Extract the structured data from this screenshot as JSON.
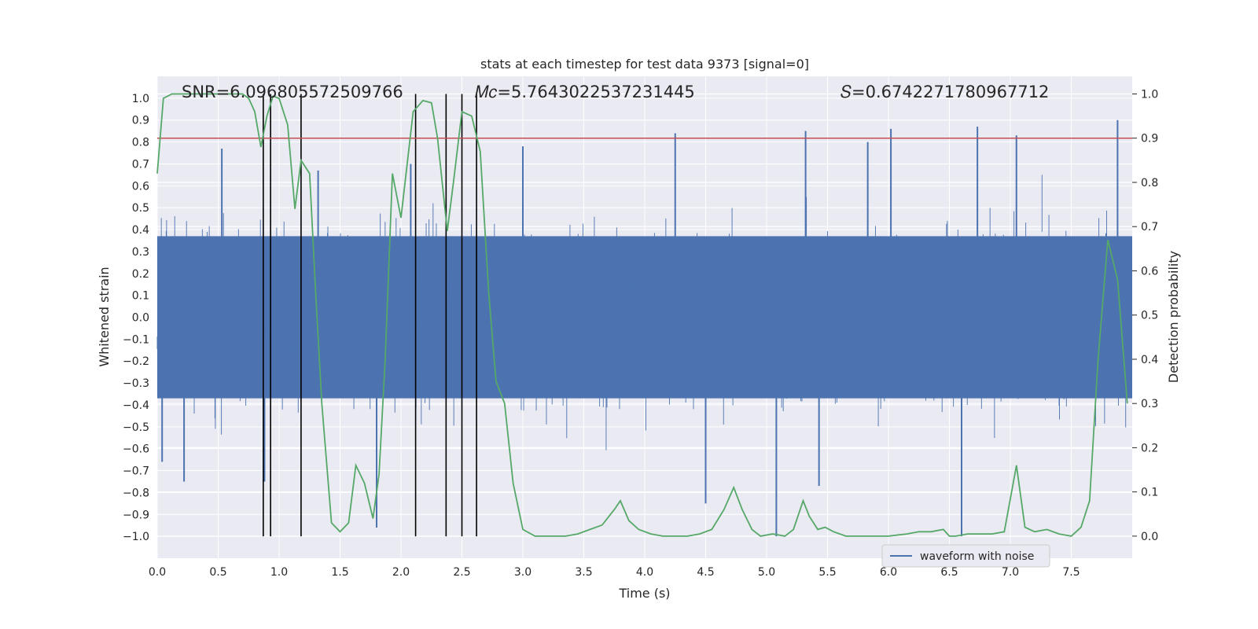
{
  "chart_data": {
    "type": "line",
    "title": "stats at each timestep for test data 9373 [signal=0]",
    "xlabel": "Time (s)",
    "ylabel": "Whitened strain",
    "y2label": "Detection probability",
    "xlim": [
      0.0,
      8.0
    ],
    "ylim": [
      -1.1,
      1.1
    ],
    "y2lim": [
      -0.05,
      1.04
    ],
    "xticks": [
      "0.0",
      "0.5",
      "1.0",
      "1.5",
      "2.0",
      "2.5",
      "3.0",
      "3.5",
      "4.0",
      "4.5",
      "5.0",
      "5.5",
      "6.0",
      "6.5",
      "7.0",
      "7.5"
    ],
    "yticks": [
      "−1.0",
      "−0.9",
      "−0.8",
      "−0.7",
      "−0.6",
      "−0.5",
      "−0.4",
      "−0.3",
      "−0.2",
      "−0.1",
      "0.0",
      "0.1",
      "0.2",
      "0.3",
      "0.4",
      "0.5",
      "0.6",
      "0.7",
      "0.8",
      "0.9",
      "1.0"
    ],
    "y2ticks": [
      "0.0",
      "0.1",
      "0.2",
      "0.3",
      "0.4",
      "0.5",
      "0.6",
      "0.7",
      "0.8",
      "0.9",
      "1.0"
    ],
    "annotations": {
      "snr": "SNR=6.096805572509766",
      "mc": "𝑀𝑐=5.7643022537231445",
      "s": "𝑆=0.6742271780967712"
    },
    "threshold": {
      "value": 0.9,
      "axis": "y2",
      "color": "#c44e52"
    },
    "event_times": [
      0.87,
      0.93,
      1.18,
      2.12,
      2.37,
      2.5,
      2.62
    ],
    "legend": {
      "entries": [
        "waveform with noise"
      ],
      "placement": "lower-right"
    },
    "series": [
      {
        "name": "waveform with noise",
        "axis": "y1",
        "color": "#4c72b0",
        "note": "dense noise; envelope approx ±0.37 with spikes to ±0.95",
        "spikes": [
          [
            0.04,
            -0.66
          ],
          [
            0.22,
            -0.75
          ],
          [
            0.53,
            0.77
          ],
          [
            0.88,
            -0.75
          ],
          [
            1.8,
            -0.96
          ],
          [
            1.32,
            0.67
          ],
          [
            2.08,
            0.7
          ],
          [
            3.0,
            0.78
          ],
          [
            4.25,
            0.84
          ],
          [
            4.5,
            -0.85
          ],
          [
            5.08,
            -1.0
          ],
          [
            5.32,
            0.85
          ],
          [
            5.43,
            -0.77
          ],
          [
            5.83,
            0.8
          ],
          [
            6.02,
            0.86
          ],
          [
            6.6,
            -1.0
          ],
          [
            6.73,
            0.87
          ],
          [
            7.05,
            0.83
          ],
          [
            7.88,
            0.9
          ]
        ]
      },
      {
        "name": "detection probability",
        "axis": "y2",
        "color": "#55a868",
        "x": [
          0.0,
          0.05,
          0.12,
          0.2,
          0.3,
          0.4,
          0.5,
          0.6,
          0.7,
          0.75,
          0.8,
          0.85,
          0.9,
          0.95,
          1.0,
          1.07,
          1.13,
          1.18,
          1.25,
          1.3,
          1.35,
          1.43,
          1.5,
          1.57,
          1.63,
          1.7,
          1.77,
          1.82,
          1.87,
          1.93,
          2.0,
          2.1,
          2.18,
          2.25,
          2.3,
          2.38,
          2.43,
          2.5,
          2.58,
          2.65,
          2.72,
          2.78,
          2.85,
          2.92,
          3.0,
          3.1,
          3.2,
          3.35,
          3.45,
          3.55,
          3.65,
          3.75,
          3.8,
          3.87,
          3.95,
          4.05,
          4.15,
          4.25,
          4.35,
          4.45,
          4.55,
          4.65,
          4.73,
          4.8,
          4.88,
          4.95,
          5.05,
          5.15,
          5.22,
          5.3,
          5.35,
          5.42,
          5.48,
          5.55,
          5.65,
          5.75,
          5.85,
          6.0,
          6.15,
          6.25,
          6.35,
          6.45,
          6.5,
          6.55,
          6.65,
          6.75,
          6.85,
          6.95,
          7.05,
          7.12,
          7.2,
          7.3,
          7.4,
          7.5,
          7.58,
          7.65,
          7.72,
          7.8,
          7.88,
          7.96
        ],
        "y": [
          0.82,
          0.99,
          1.0,
          1.0,
          1.0,
          1.0,
          1.0,
          1.0,
          1.0,
          0.99,
          0.96,
          0.88,
          0.95,
          0.995,
          0.99,
          0.93,
          0.74,
          0.85,
          0.82,
          0.55,
          0.3,
          0.03,
          0.01,
          0.03,
          0.16,
          0.12,
          0.04,
          0.14,
          0.4,
          0.82,
          0.72,
          0.96,
          0.985,
          0.98,
          0.9,
          0.69,
          0.8,
          0.96,
          0.95,
          0.87,
          0.55,
          0.35,
          0.3,
          0.12,
          0.015,
          0.0,
          0.0,
          0.0,
          0.005,
          0.015,
          0.025,
          0.06,
          0.08,
          0.035,
          0.015,
          0.005,
          0.0,
          0.0,
          0.0,
          0.005,
          0.015,
          0.06,
          0.11,
          0.06,
          0.015,
          0.0,
          0.005,
          0.0,
          0.015,
          0.08,
          0.045,
          0.015,
          0.02,
          0.01,
          0.0,
          0.0,
          0.0,
          0.0,
          0.005,
          0.01,
          0.01,
          0.015,
          0.0,
          0.0,
          0.005,
          0.005,
          0.005,
          0.01,
          0.16,
          0.02,
          0.01,
          0.015,
          0.005,
          0.0,
          0.02,
          0.08,
          0.4,
          0.67,
          0.58,
          0.3
        ]
      }
    ]
  }
}
